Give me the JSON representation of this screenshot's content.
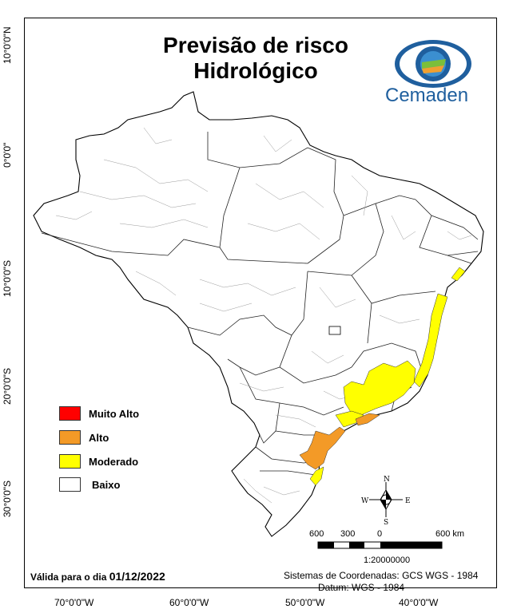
{
  "title_line1": "Previsão de risco",
  "title_line2": "Hidrológico",
  "logo_text": "Cemaden",
  "legend": [
    {
      "label": "Muito Alto",
      "color": "#ff0000"
    },
    {
      "label": "Alto",
      "color": "#f39a27"
    },
    {
      "label": "Moderado",
      "color": "#ffff00"
    },
    {
      "label": "Baixo",
      "color": "#ffffff"
    }
  ],
  "lat_ticks": [
    "10°0'0\"N",
    "0°0'0\"",
    "10°0'0\"S",
    "20°0'0\"S",
    "30°0'0\"S"
  ],
  "lon_ticks": [
    "70°0'0\"W",
    "60°0'0\"W",
    "50°0'0\"W",
    "40°0'0\"W"
  ],
  "scale_labels": [
    "600",
    "300",
    "0",
    "600 km"
  ],
  "scale_ratio": "1:20000000",
  "compass": {
    "n": "N",
    "s": "S",
    "e": "E",
    "w": "W"
  },
  "validity_label": "Válida para o dia",
  "validity_date": "01/12/2022",
  "coord_system": "Sistemas de Coordenadas: GCS WGS - 1984",
  "datum": "Datum: WGS - 1984"
}
